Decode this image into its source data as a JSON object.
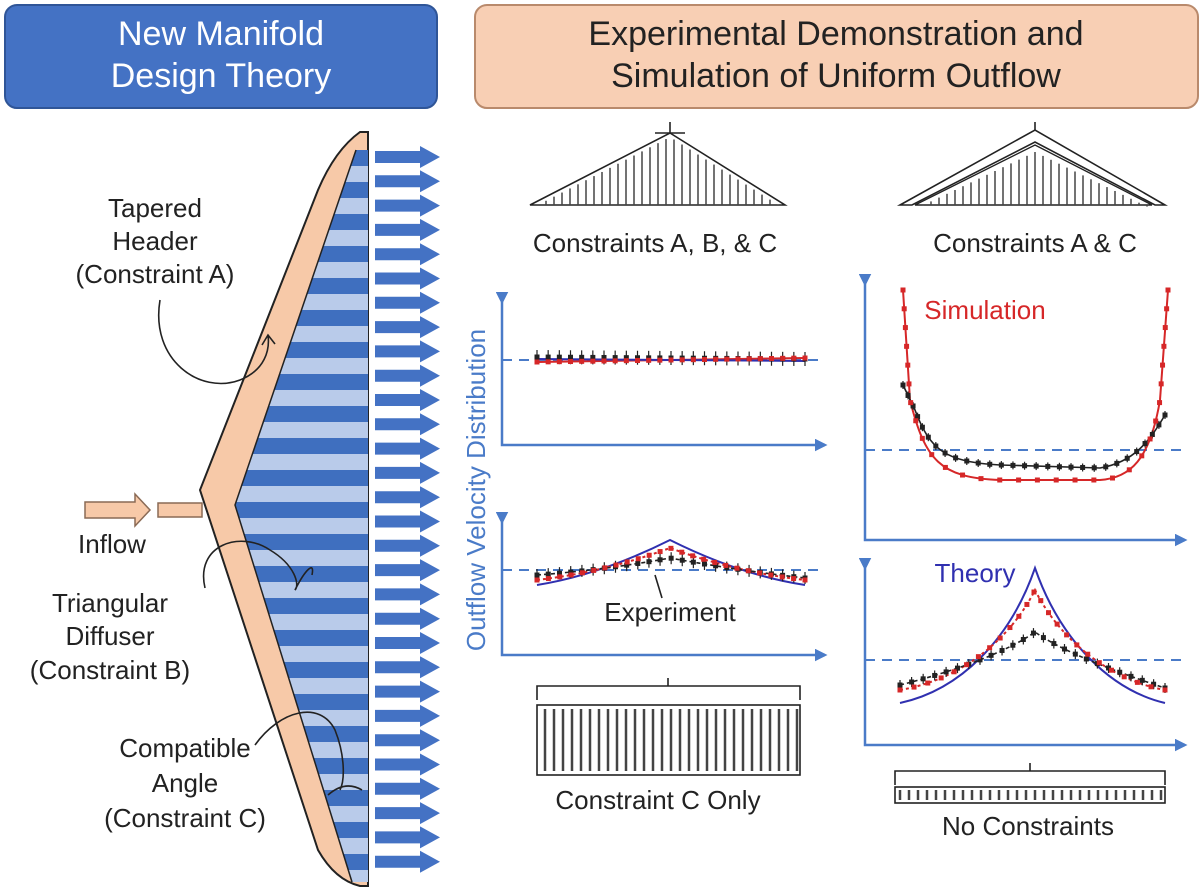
{
  "left_title": [
    "New Manifold",
    "Design Theory"
  ],
  "right_title": [
    "Experimental Demonstration and",
    "Simulation of Uniform Outflow"
  ],
  "manifold_labels": {
    "tapered_header": [
      "Tapered",
      "Header",
      "(Constraint A)"
    ],
    "inflow": "Inflow",
    "triangular_diffuser": [
      "Triangular",
      "Diffuser",
      "(Constraint B)"
    ],
    "compatible_angle": [
      "Compatible",
      "Angle",
      "(Constraint C)"
    ]
  },
  "y_axis_label": "Outflow Velocity Distribution",
  "designs": [
    "Constraints A, B, & C",
    "Constraints A & C",
    "Constraint C Only",
    "No Constraints"
  ],
  "curve_labels": {
    "simulation": "Simulation",
    "experiment": "Experiment",
    "theory": "Theory"
  }
}
